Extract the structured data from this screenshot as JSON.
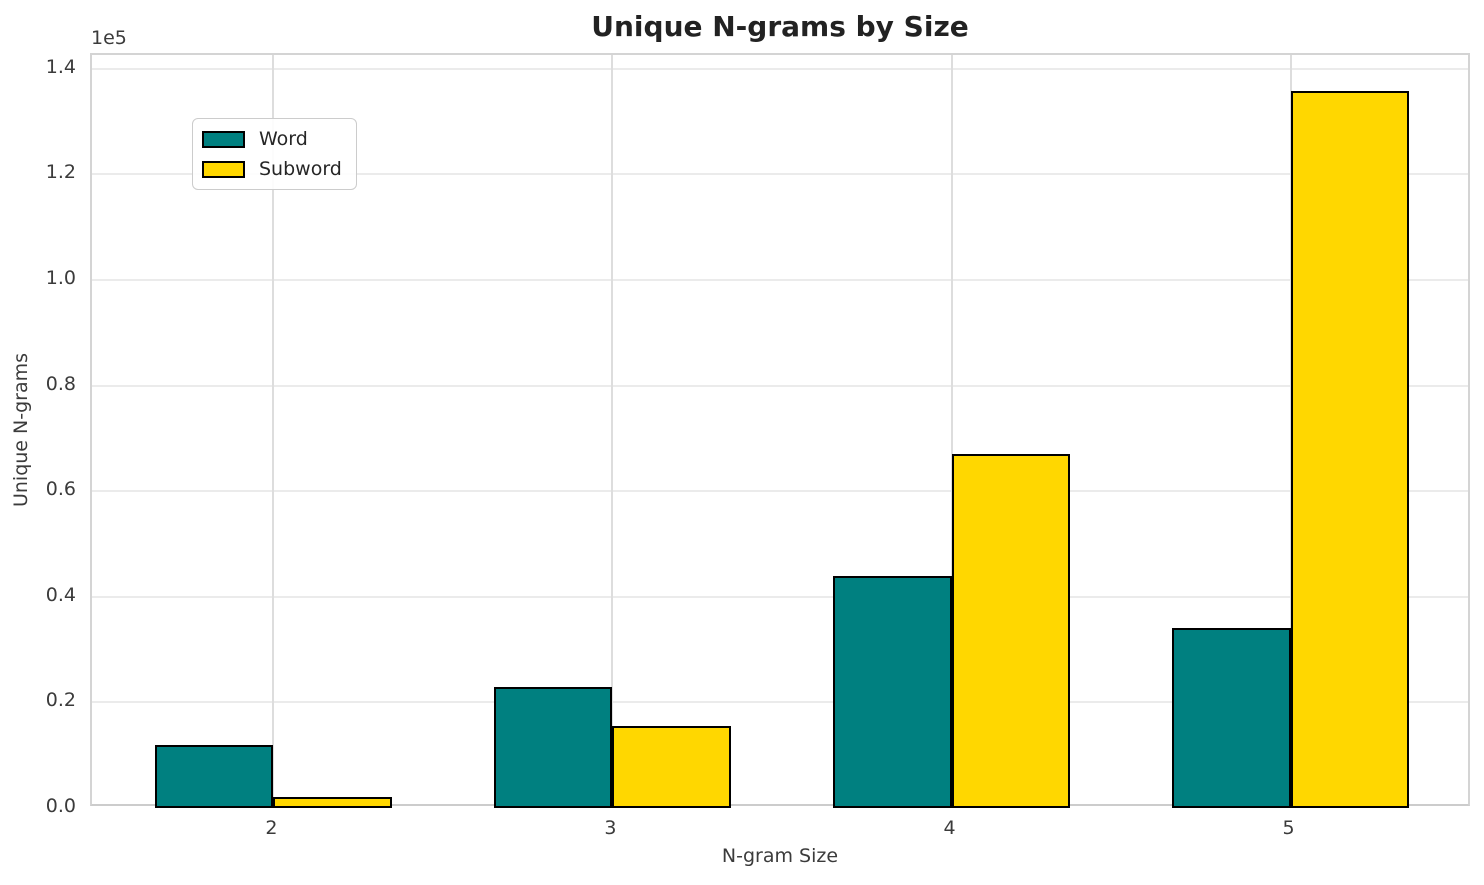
{
  "chart_data": {
    "type": "bar",
    "title": "Unique N-grams by Size",
    "xlabel": "N-gram Size",
    "ylabel": "Unique N-grams",
    "y_offset_label": "1e5",
    "categories": [
      "2",
      "3",
      "4",
      "5"
    ],
    "series": [
      {
        "name": "Word",
        "color": "#008080",
        "values": [
          12000,
          23000,
          44000,
          34000
        ]
      },
      {
        "name": "Subword",
        "color": "#FFD700",
        "values": [
          2000,
          15500,
          67000,
          135800
        ]
      }
    ],
    "y_tick_labels": [
      "0.0",
      "0.2",
      "0.4",
      "0.6",
      "0.8",
      "1.0",
      "1.2",
      "1.4"
    ],
    "y_scale": 100000,
    "ylim": [
      0,
      142590
    ],
    "bar_edge_color": "#000000",
    "grid": true,
    "legend": {
      "position": "upper-left",
      "entries": [
        "Word",
        "Subword"
      ]
    },
    "colors": {
      "word_bar": "#008080",
      "subword_bar": "#FFD700",
      "grid_horizontal": "#ebebeb",
      "grid_vertical": "#dddddd",
      "spine": "#cccccc",
      "tick_label": "#3b3b3b",
      "title": "#222222"
    }
  }
}
